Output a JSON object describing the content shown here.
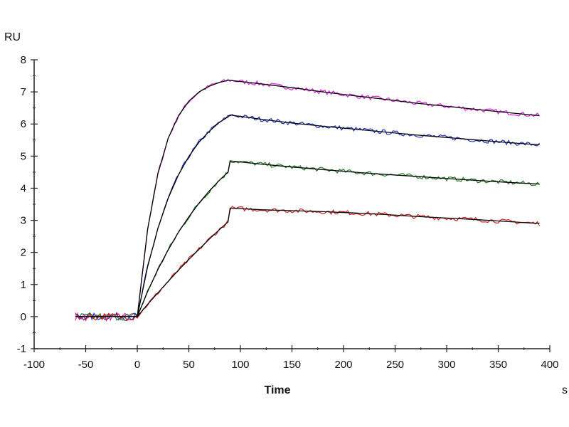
{
  "chart_data": {
    "type": "line",
    "title": "",
    "xlabel": "Time",
    "xunit": "s",
    "ylabel": "RU",
    "xlim": [
      -100,
      400
    ],
    "ylim": [
      -1,
      8
    ],
    "xticks": [
      -100,
      -50,
      0,
      50,
      100,
      150,
      200,
      250,
      300,
      350,
      400
    ],
    "yticks": [
      -1,
      0,
      1,
      2,
      3,
      4,
      5,
      6,
      7,
      8
    ],
    "grid": false,
    "legend": "none",
    "fit_color": "#000000",
    "x": [
      -60,
      -30,
      0,
      10,
      20,
      30,
      40,
      50,
      60,
      70,
      80,
      88,
      90,
      120,
      150,
      180,
      210,
      240,
      270,
      300,
      330,
      360,
      390
    ],
    "series": [
      {
        "color": "#e020e0",
        "values": [
          0,
          0,
          0,
          2.72,
          4.45,
          5.56,
          6.26,
          6.71,
          7.0,
          7.18,
          7.3,
          7.36,
          7.36,
          7.25,
          7.13,
          7.0,
          6.88,
          6.77,
          6.65,
          6.55,
          6.45,
          6.35,
          6.26
        ]
      },
      {
        "color": "#2030c0",
        "values": [
          0,
          0,
          0,
          1.55,
          2.75,
          3.69,
          4.42,
          4.99,
          5.44,
          5.78,
          6.06,
          6.22,
          6.28,
          6.15,
          6.03,
          5.93,
          5.84,
          5.75,
          5.66,
          5.58,
          5.5,
          5.42,
          5.35
        ]
      },
      {
        "color": "#208020",
        "values": [
          0,
          0,
          0,
          0.78,
          1.47,
          2.08,
          2.63,
          3.11,
          3.54,
          3.92,
          4.26,
          4.5,
          4.85,
          4.75,
          4.66,
          4.58,
          4.5,
          4.43,
          4.37,
          4.3,
          4.24,
          4.18,
          4.13
        ]
      },
      {
        "color": "#d02020",
        "values": [
          0,
          0,
          0,
          0.38,
          0.74,
          1.1,
          1.45,
          1.78,
          2.1,
          2.42,
          2.72,
          2.95,
          3.38,
          3.33,
          3.3,
          3.27,
          3.23,
          3.18,
          3.12,
          3.07,
          3.02,
          2.96,
          2.9
        ]
      }
    ]
  }
}
